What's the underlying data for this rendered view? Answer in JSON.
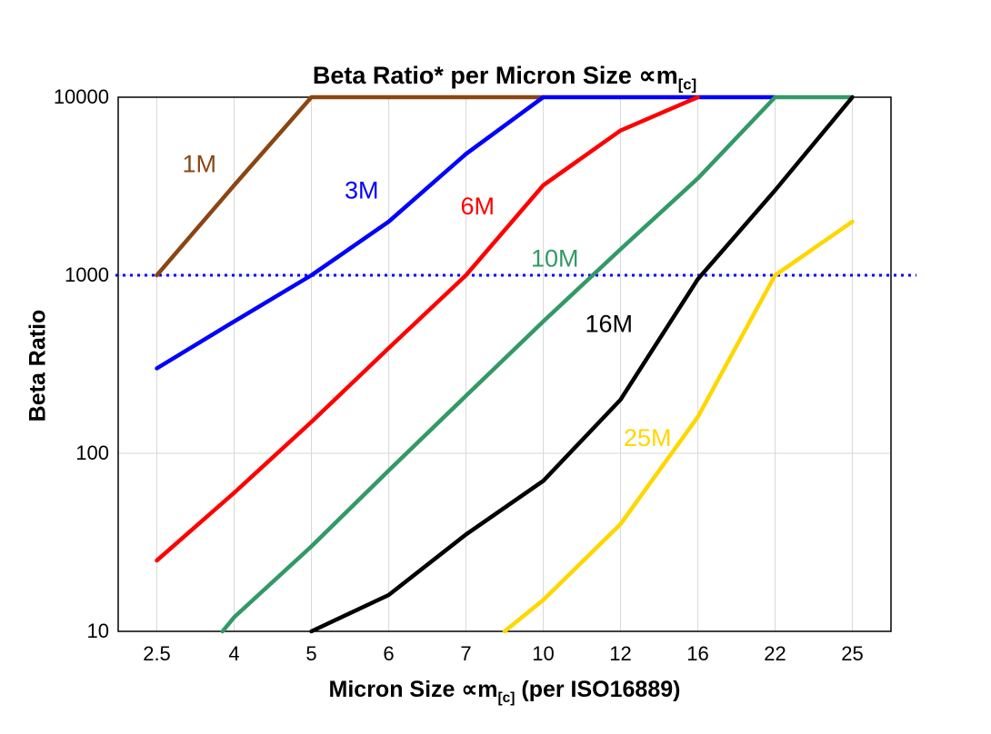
{
  "title": {
    "prefix": "Beta Ratio* per Micron Size ∝m",
    "sub": "[c]"
  },
  "axes": {
    "y_label": "Beta Ratio",
    "x_label_prefix": "Micron Size ∝m",
    "x_label_sub": "[c]",
    "x_label_suffix": " (per ISO16889)",
    "y_tick_labels": [
      "10",
      "100",
      "1000",
      "10000"
    ],
    "x_tick_labels": [
      "2.5",
      "4",
      "5",
      "6",
      "7",
      "10",
      "12",
      "16",
      "22",
      "25"
    ]
  },
  "chart_data": {
    "type": "line",
    "title": "Beta Ratio* per Micron Size ∝m[c]",
    "xlabel": "Micron Size ∝m[c] (per ISO16889)",
    "ylabel": "Beta Ratio",
    "x_scale": "categorical",
    "y_scale": "log",
    "categories": [
      2.5,
      4,
      5,
      6,
      7,
      10,
      12,
      16,
      22,
      25
    ],
    "y_ticks": [
      10,
      100,
      1000,
      10000
    ],
    "ylim": [
      10,
      10000
    ],
    "grid": true,
    "legend_position": "inline-labels",
    "reference_line": {
      "y": 1000,
      "style": "dotted",
      "color": "#0000ff"
    },
    "point_format": "[category_index, beta_ratio]",
    "series": [
      {
        "name": "1M",
        "color": "#8b4513",
        "points": [
          [
            0,
            1000
          ],
          [
            1,
            3200
          ],
          [
            2,
            10000
          ],
          [
            3,
            10000
          ],
          [
            4,
            10000
          ],
          [
            5,
            10000
          ]
        ]
      },
      {
        "name": "3M",
        "color": "#0000ff",
        "points": [
          [
            0,
            300
          ],
          [
            1,
            550
          ],
          [
            2,
            1000
          ],
          [
            3,
            2000
          ],
          [
            4,
            4800
          ],
          [
            5,
            10000
          ],
          [
            6,
            10000
          ],
          [
            7,
            10000
          ],
          [
            8,
            10000
          ]
        ]
      },
      {
        "name": "6M",
        "color": "#ff0000",
        "points": [
          [
            0,
            25
          ],
          [
            1,
            60
          ],
          [
            2,
            150
          ],
          [
            3,
            390
          ],
          [
            4,
            1000
          ],
          [
            5,
            3200
          ],
          [
            6,
            6500
          ],
          [
            7,
            10000
          ]
        ]
      },
      {
        "name": "10M",
        "color": "#339966",
        "points": [
          [
            0.85,
            10
          ],
          [
            1,
            12
          ],
          [
            2,
            30
          ],
          [
            3,
            80
          ],
          [
            4,
            210
          ],
          [
            5,
            550
          ],
          [
            6,
            1400
          ],
          [
            7,
            3500
          ],
          [
            8,
            10000
          ],
          [
            9,
            10000
          ]
        ]
      },
      {
        "name": "16M",
        "color": "#000000",
        "points": [
          [
            2,
            10
          ],
          [
            3,
            16
          ],
          [
            4,
            35
          ],
          [
            5,
            70
          ],
          [
            6,
            200
          ],
          [
            7,
            950
          ],
          [
            8,
            3000
          ],
          [
            9,
            10000
          ]
        ]
      },
      {
        "name": "25M",
        "color": "#ffd700",
        "points": [
          [
            4.5,
            10
          ],
          [
            5,
            15
          ],
          [
            6,
            40
          ],
          [
            7,
            160
          ],
          [
            8,
            1000
          ],
          [
            9,
            2000
          ]
        ]
      }
    ],
    "labels": [
      {
        "text": "1M",
        "color": "#8b4513",
        "xi": 0.55,
        "y": 3800
      },
      {
        "text": "3M",
        "color": "#0000ff",
        "xi": 2.65,
        "y": 2700
      },
      {
        "text": "6M",
        "color": "#ff0000",
        "xi": 4.15,
        "y": 2200
      },
      {
        "text": "10M",
        "color": "#339966",
        "xi": 5.15,
        "y": 1120
      },
      {
        "text": "16M",
        "color": "#000000",
        "xi": 5.85,
        "y": 480
      },
      {
        "text": "25M",
        "color": "#ffd700",
        "xi": 6.35,
        "y": 110
      }
    ]
  }
}
